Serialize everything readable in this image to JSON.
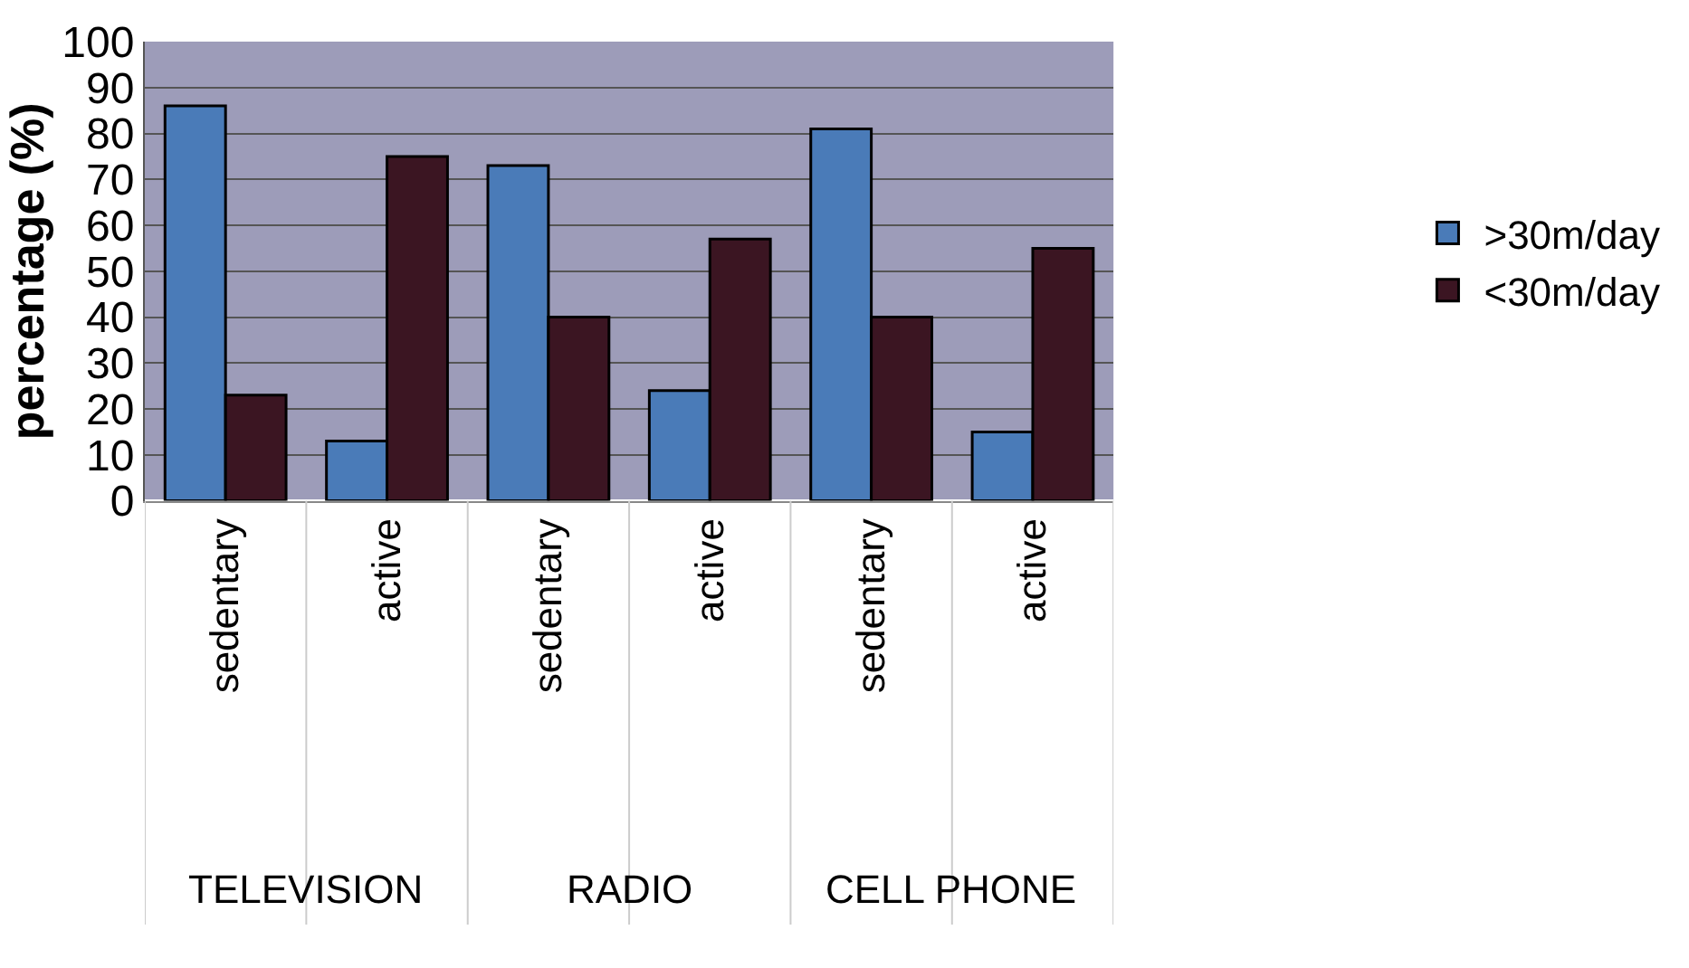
{
  "chart_data": {
    "type": "bar",
    "ylabel": "percentage (%)",
    "categories": [
      "sedentary",
      "active",
      "sedentary",
      "active",
      "sedentary",
      "active"
    ],
    "series": [
      {
        "name": ">30m/day",
        "color": "#4a7bb8",
        "values": [
          86,
          13,
          73,
          24,
          81,
          15
        ]
      },
      {
        "name": "<30m/day",
        "color": "#3b1522",
        "values": [
          23,
          75,
          40,
          57,
          40,
          55
        ]
      }
    ],
    "annotations": [
      "TELEVISION",
      "RADIO",
      "CELL PHONE"
    ],
    "ylim": [
      0,
      100
    ],
    "yticks": [
      0,
      10,
      20,
      30,
      40,
      50,
      60,
      70,
      80,
      90,
      100
    ],
    "grid": "y",
    "legend": "right"
  }
}
